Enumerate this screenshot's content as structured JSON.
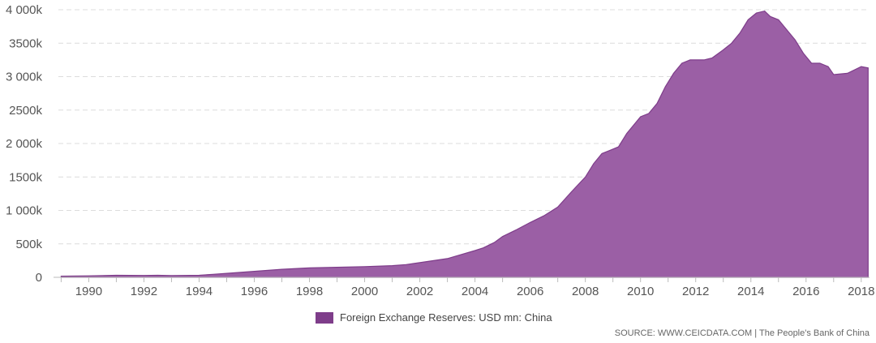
{
  "chart_data": {
    "type": "area",
    "title": "",
    "xlabel": "",
    "ylabel": "",
    "xlim": [
      1988.9,
      2018.3
    ],
    "ylim": [
      0,
      4000000
    ],
    "grid": true,
    "legend_position": "bottom-center",
    "x_ticks": [
      1990,
      1992,
      1994,
      1996,
      1998,
      2000,
      2002,
      2004,
      2006,
      2008,
      2010,
      2012,
      2014,
      2016,
      2018
    ],
    "x_tick_labels": [
      "1990",
      "1992",
      "1994",
      "1996",
      "1998",
      "2000",
      "2002",
      "2004",
      "2006",
      "2008",
      "2010",
      "2012",
      "2014",
      "2016",
      "2018"
    ],
    "y_ticks": [
      0,
      500000,
      1000000,
      1500000,
      2000000,
      2500000,
      3000000,
      3500000,
      4000000
    ],
    "y_tick_labels": [
      "0",
      "500k",
      "1 000k",
      "1500k",
      "2 000k",
      "2500k",
      "3 000k",
      "3500k",
      "4 000k"
    ],
    "series": [
      {
        "name": "Foreign Exchange Reserves: USD mn: China",
        "color": "#9b5fa5",
        "legend_color": "#7e3d8a",
        "x": [
          1989.0,
          1990.0,
          1991.0,
          1992.0,
          1992.5,
          1993.0,
          1994.0,
          1994.5,
          1995.0,
          1996.0,
          1997.0,
          1997.7,
          1998.0,
          1999.0,
          2000.0,
          2001.0,
          2001.5,
          2002.0,
          2002.5,
          2003.0,
          2003.5,
          2004.0,
          2004.3,
          2004.7,
          2005.0,
          2005.5,
          2006.0,
          2006.5,
          2007.0,
          2007.5,
          2008.0,
          2008.3,
          2008.6,
          2008.9,
          2009.2,
          2009.5,
          2010.0,
          2010.3,
          2010.6,
          2010.9,
          2011.2,
          2011.5,
          2011.8,
          2012.0,
          2012.3,
          2012.6,
          2013.0,
          2013.3,
          2013.6,
          2013.9,
          2014.2,
          2014.5,
          2014.7,
          2015.0,
          2015.3,
          2015.6,
          2015.9,
          2016.2,
          2016.5,
          2016.8,
          2017.0,
          2017.5,
          2018.0,
          2018.25
        ],
        "values": [
          17000,
          22000,
          30000,
          28000,
          30000,
          27000,
          30000,
          45000,
          60000,
          90000,
          120000,
          135000,
          140000,
          150000,
          160000,
          175000,
          190000,
          220000,
          250000,
          280000,
          340000,
          400000,
          440000,
          520000,
          610000,
          710000,
          820000,
          920000,
          1050000,
          1280000,
          1500000,
          1700000,
          1850000,
          1900000,
          1950000,
          2150000,
          2400000,
          2450000,
          2600000,
          2850000,
          3050000,
          3200000,
          3250000,
          3250000,
          3250000,
          3280000,
          3400000,
          3500000,
          3650000,
          3850000,
          3950000,
          3980000,
          3900000,
          3850000,
          3700000,
          3550000,
          3350000,
          3200000,
          3200000,
          3150000,
          3030000,
          3050000,
          3150000,
          3130000
        ]
      }
    ]
  },
  "legend": {
    "label": "Foreign Exchange Reserves: USD mn: China"
  },
  "footer": {
    "source": "SOURCE: WWW.CEICDATA.COM | The People's Bank of China"
  }
}
